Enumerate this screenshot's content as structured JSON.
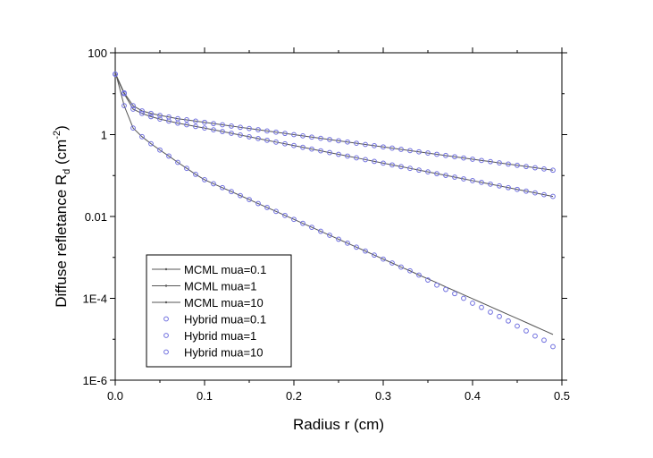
{
  "chart_data": {
    "type": "line",
    "xlabel": "Radius r (cm)",
    "ylabel": [
      "Diffuse refletance R",
      "d",
      " (cm",
      "-2",
      ")"
    ],
    "xlim": [
      0,
      0.5
    ],
    "xticks": [
      {
        "value": 0,
        "label": "0.0"
      },
      0.1,
      0.2,
      0.3,
      0.4,
      0.5
    ],
    "ylim": [
      1e-06,
      100
    ],
    "yticks": [
      {
        "value": 1e-06,
        "label": "1E-6"
      },
      {
        "value": 0.0001,
        "label": "1E-4"
      },
      0.01,
      1,
      100
    ],
    "yscale": "log",
    "legend": "lower left",
    "x": [
      0,
      0.01,
      0.02,
      0.03,
      0.04,
      0.05,
      0.06,
      0.07,
      0.08,
      0.09,
      0.1,
      0.11,
      0.12,
      0.13,
      0.14,
      0.15,
      0.16,
      0.17,
      0.18,
      0.19,
      0.2,
      0.21,
      0.22,
      0.23,
      0.24,
      0.25,
      0.26,
      0.27,
      0.28,
      0.29,
      0.3,
      0.31,
      0.32,
      0.33,
      0.34,
      0.35,
      0.36,
      0.37,
      0.38,
      0.39,
      0.4,
      0.41,
      0.42,
      0.43,
      0.44,
      0.45,
      0.46,
      0.47,
      0.48,
      0.49
    ],
    "series": [
      {
        "name": "MCML mua=0.1",
        "mode": "line",
        "color": "#555555",
        "values": [
          32,
          10.5,
          5.1,
          3.8,
          3.3,
          2.95,
          2.7,
          2.45,
          2.3,
          2.14,
          2.0,
          1.86,
          1.74,
          1.62,
          1.51,
          1.41,
          1.32,
          1.23,
          1.15,
          1.07,
          1.0,
          0.933,
          0.871,
          0.813,
          0.759,
          0.708,
          0.661,
          0.617,
          0.575,
          0.537,
          0.501,
          0.468,
          0.437,
          0.407,
          0.38,
          0.355,
          0.331,
          0.309,
          0.288,
          0.269,
          0.251,
          0.234,
          0.219,
          0.204,
          0.191,
          0.178,
          0.166,
          0.155,
          0.145,
          0.135
        ]
      },
      {
        "name": "MCML mua=1",
        "mode": "line",
        "color": "#555555",
        "values": [
          30,
          10,
          4.2,
          3.3,
          2.75,
          2.4,
          2.14,
          1.91,
          1.74,
          1.58,
          1.45,
          1.31,
          1.19,
          1.08,
          0.977,
          0.885,
          0.802,
          0.727,
          0.658,
          0.597,
          0.541,
          0.49,
          0.444,
          0.402,
          0.364,
          0.33,
          0.299,
          0.271,
          0.245,
          0.222,
          0.201,
          0.182,
          0.165,
          0.15,
          0.136,
          0.123,
          0.111,
          0.101,
          0.0915,
          0.0829,
          0.0751,
          0.0681,
          0.0617,
          0.0559,
          0.0506,
          0.0459,
          0.0416,
          0.0377,
          0.0341,
          0.0309
        ]
      },
      {
        "name": "MCML mua=10",
        "mode": "line",
        "color": "#555555",
        "values": [
          35,
          5.1,
          1.45,
          0.89,
          0.6,
          0.42,
          0.3,
          0.21,
          0.15,
          0.107,
          0.079,
          0.063,
          0.0506,
          0.0405,
          0.0324,
          0.0259,
          0.0207,
          0.0166,
          0.0133,
          0.0106,
          0.0085,
          0.0068,
          0.00544,
          0.00435,
          0.00348,
          0.00278,
          0.00223,
          0.00178,
          0.00143,
          0.00114,
          0.00091,
          0.00073,
          0.00058,
          0.00047,
          0.00037,
          0.0003,
          0.00024,
          0.00019,
          0.000153,
          0.000122,
          9.79e-05,
          7.83e-05,
          6.27e-05,
          5.01e-05,
          4.01e-05,
          3.21e-05,
          2.57e-05,
          2.05e-05,
          1.64e-05,
          1.31e-05
        ]
      },
      {
        "name": "Hybrid mua=0.1",
        "mode": "markers",
        "color": "#6f6fdf",
        "values": [
          30,
          10.5,
          5.1,
          3.8,
          3.3,
          2.95,
          2.7,
          2.45,
          2.3,
          2.14,
          2.0,
          1.86,
          1.74,
          1.62,
          1.51,
          1.41,
          1.32,
          1.23,
          1.15,
          1.07,
          1.0,
          0.933,
          0.871,
          0.813,
          0.759,
          0.708,
          0.661,
          0.617,
          0.575,
          0.537,
          0.501,
          0.468,
          0.437,
          0.407,
          0.38,
          0.355,
          0.331,
          0.309,
          0.288,
          0.269,
          0.251,
          0.234,
          0.219,
          0.204,
          0.191,
          0.178,
          0.166,
          0.155,
          0.145,
          0.135
        ]
      },
      {
        "name": "Hybrid mua=1",
        "mode": "markers",
        "color": "#6f6fdf",
        "values": [
          30,
          10,
          4.2,
          3.3,
          2.75,
          2.4,
          2.14,
          1.91,
          1.74,
          1.58,
          1.45,
          1.31,
          1.19,
          1.08,
          0.977,
          0.885,
          0.802,
          0.727,
          0.658,
          0.597,
          0.541,
          0.49,
          0.444,
          0.402,
          0.364,
          0.33,
          0.299,
          0.271,
          0.245,
          0.222,
          0.201,
          0.182,
          0.165,
          0.15,
          0.136,
          0.123,
          0.111,
          0.101,
          0.0915,
          0.0829,
          0.0751,
          0.0681,
          0.0617,
          0.0559,
          0.0506,
          0.0459,
          0.0416,
          0.0377,
          0.0341,
          0.0309
        ]
      },
      {
        "name": "Hybrid mua=10",
        "mode": "markers",
        "color": "#6f6fdf",
        "values": [
          30,
          5.1,
          1.45,
          0.89,
          0.6,
          0.42,
          0.3,
          0.21,
          0.15,
          0.107,
          0.079,
          0.063,
          0.0506,
          0.0405,
          0.0324,
          0.0259,
          0.0207,
          0.0166,
          0.0133,
          0.0106,
          0.0085,
          0.0068,
          0.00544,
          0.00435,
          0.00348,
          0.00278,
          0.00223,
          0.00178,
          0.00143,
          0.00114,
          0.00091,
          0.00073,
          0.00058,
          0.00047,
          0.00037,
          0.00028,
          0.00021,
          0.000165,
          0.00013,
          0.0001,
          7.6e-05,
          6e-05,
          4.6e-05,
          3.6e-05,
          2.8e-05,
          2.1e-05,
          1.6e-05,
          1.2e-05,
          9.5e-06,
          6.6e-06
        ]
      }
    ]
  }
}
